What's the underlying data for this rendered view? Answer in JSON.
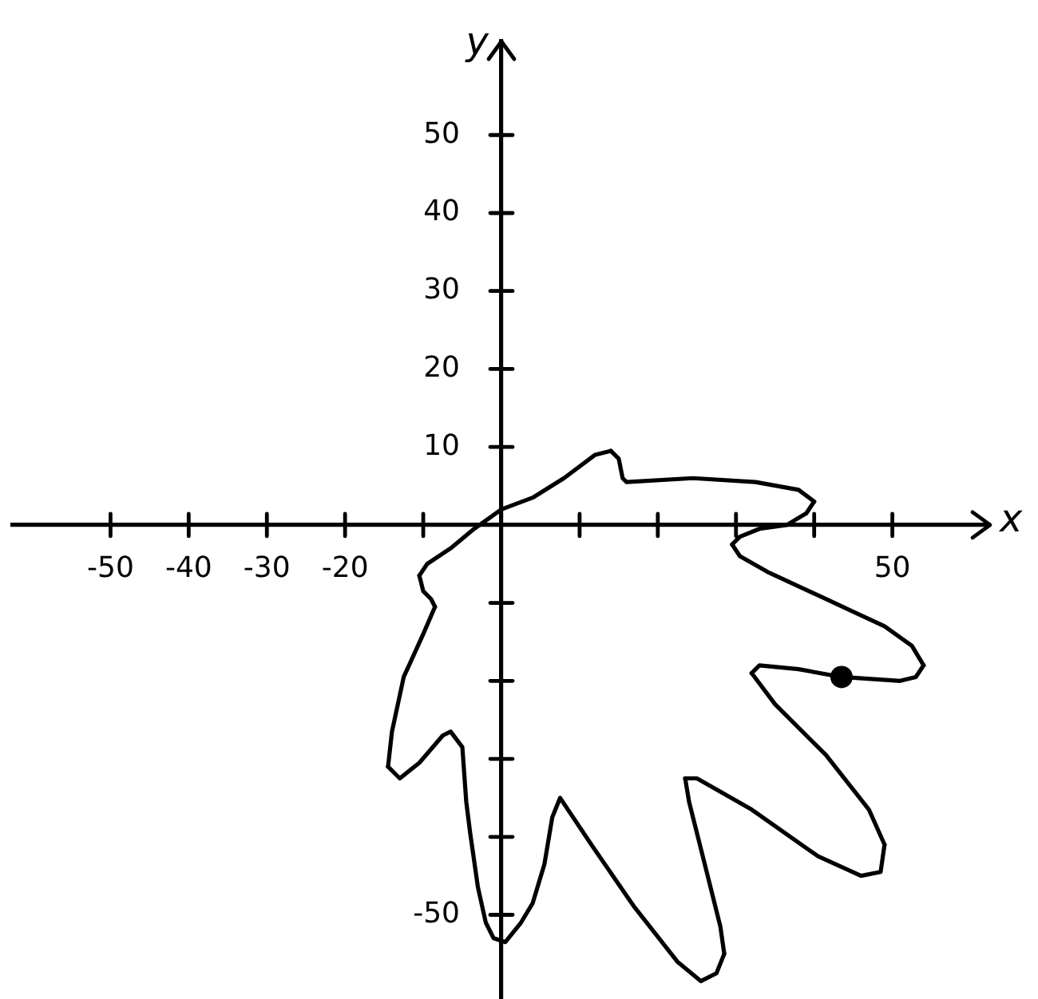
{
  "chart_data": {
    "type": "line",
    "xlabel": "x",
    "ylabel": "y",
    "xlim": [
      -62.5,
      62.5
    ],
    "ylim": [
      -61,
      62
    ],
    "xticks": [
      -50,
      -40,
      -30,
      -20,
      {
        "value": -10,
        "label": null
      },
      {
        "value": 10,
        "label": null
      },
      {
        "value": 20,
        "label": null
      },
      {
        "value": 30,
        "label": null
      },
      {
        "value": 40,
        "label": null
      },
      50
    ],
    "yticks": [
      {
        "value": -50,
        "label": "-50"
      },
      {
        "value": -40,
        "label": null
      },
      {
        "value": -30,
        "label": null
      },
      {
        "value": -20,
        "label": null
      },
      {
        "value": -10,
        "label": null
      },
      10,
      20,
      30,
      40,
      50
    ],
    "series": [
      {
        "color": "#000000",
        "marker": "none",
        "line_style": "solid",
        "x": [
          14,
          15,
          15.5,
          16,
          24.5,
          32.5,
          38,
          40
        ],
        "values": [
          9.5,
          8.5,
          6,
          5.5,
          6,
          5.5,
          4.5,
          3
        ]
      },
      {
        "color": "#000000",
        "marker": "none",
        "line_style": "solid",
        "x": [
          40,
          39,
          36.5,
          33,
          30.5,
          29.5
        ],
        "values": [
          3,
          1.5,
          0,
          -0.5,
          -1.5,
          -2.5
        ]
      },
      {
        "color": "#000000",
        "marker": "none",
        "line_style": "solid",
        "x": [
          29.5,
          30.5,
          34,
          41.5,
          49,
          52.5,
          54
        ],
        "values": [
          -2.5,
          -4,
          -6,
          -9.5,
          -13,
          -15.5,
          -18
        ]
      },
      {
        "color": "#000000",
        "marker": "none",
        "line_style": "solid",
        "x": [
          54,
          53,
          51,
          43.5,
          38,
          33,
          32
        ],
        "values": [
          -18,
          -19.5,
          -20,
          -19.5,
          -18.5,
          -18,
          -19
        ]
      },
      {
        "color": "#000000",
        "marker": "none",
        "line_style": "solid",
        "x": [
          32,
          35,
          41.5,
          47,
          49
        ],
        "values": [
          -19,
          -23,
          -29.5,
          -36.5,
          -41
        ]
      },
      {
        "color": "#000000",
        "marker": "none",
        "line_style": "solid",
        "x": [
          49,
          48.5,
          46,
          40.5,
          32,
          25,
          23.5
        ],
        "values": [
          -41,
          -44.5,
          -45,
          -42.5,
          -36.5,
          -32.5,
          -32.5
        ]
      },
      {
        "color": "#000000",
        "marker": "none",
        "line_style": "solid",
        "x": [
          23.5,
          24,
          26,
          28,
          28.5
        ],
        "values": [
          -32.5,
          -35.5,
          -43.5,
          -51.5,
          -55
        ]
      },
      {
        "color": "#000000",
        "marker": "none",
        "line_style": "solid",
        "x": [
          28.5,
          27.5,
          25.5,
          22.5,
          17,
          11.5,
          7.5,
          6.5,
          5.5,
          4,
          2.5,
          0.5,
          -1,
          -2,
          -3,
          -4,
          -4.5,
          -5,
          -6.5,
          -7.5,
          -10.5,
          -13,
          -14.5
        ],
        "values": [
          -55,
          -57.5,
          -58.5,
          -56,
          -49,
          -41,
          -35,
          -37.5,
          -43.5,
          -48.5,
          -51,
          -53.5,
          -53,
          -51,
          -46.5,
          -39.5,
          -35.5,
          -28.5,
          -26.5,
          -27,
          -30.5,
          -32.5,
          -31
        ]
      },
      {
        "color": "#000000",
        "marker": "none",
        "line_style": "solid",
        "x": [
          -14.5,
          -14,
          -12.5,
          -10,
          -8.5
        ],
        "values": [
          -31,
          -26.5,
          -19.5,
          -14,
          -10.5
        ]
      },
      {
        "color": "#000000",
        "marker": "none",
        "line_style": "solid",
        "x": [
          -8.5,
          -9,
          -10,
          -10.5
        ],
        "values": [
          -10.5,
          -9.5,
          -8.5,
          -6.5
        ]
      },
      {
        "color": "#000000",
        "marker": "none",
        "line_style": "solid",
        "x": [
          -10.5,
          -9.5,
          -6.5,
          -3.5,
          0,
          4,
          8,
          12,
          14
        ],
        "values": [
          -6.5,
          -5,
          -3,
          -0.5,
          2,
          3.5,
          6,
          9,
          9.5
        ]
      },
      {
        "type": "scatter",
        "color": "#000000",
        "marker": "circle",
        "x": [
          43.5
        ],
        "values": [
          -19.5
        ]
      }
    ]
  }
}
